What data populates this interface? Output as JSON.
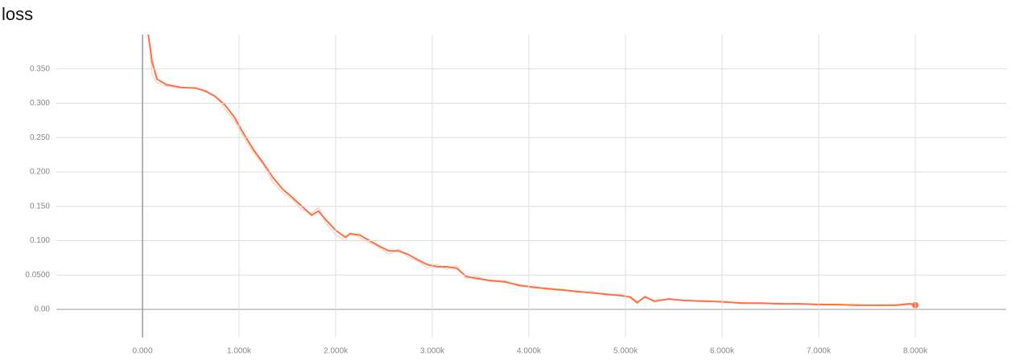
{
  "chart_data": {
    "type": "line",
    "title": "loss",
    "x": [
      40,
      100,
      150,
      250,
      400,
      550,
      650,
      750,
      850,
      950,
      1050,
      1150,
      1250,
      1350,
      1450,
      1550,
      1650,
      1750,
      1820,
      1900,
      2000,
      2100,
      2150,
      2250,
      2350,
      2450,
      2550,
      2650,
      2750,
      2850,
      2950,
      3050,
      3150,
      3250,
      3350,
      3450,
      3600,
      3750,
      3900,
      4050,
      4200,
      4350,
      4500,
      4650,
      4800,
      4950,
      5050,
      5120,
      5200,
      5300,
      5450,
      5600,
      5800,
      6000,
      6200,
      6400,
      6600,
      6800,
      7000,
      7200,
      7400,
      7600,
      7800,
      7950,
      8000
    ],
    "series": [
      {
        "color": "#fbd0c2",
        "values": [
          0.44,
          0.34,
          0.33,
          0.325,
          0.322,
          0.323,
          0.316,
          0.312,
          0.292,
          0.275,
          0.25,
          0.228,
          0.21,
          0.185,
          0.17,
          0.16,
          0.145,
          0.14,
          0.148,
          0.125,
          0.108,
          0.1,
          0.112,
          0.104,
          0.097,
          0.09,
          0.08,
          0.088,
          0.076,
          0.07,
          0.06,
          0.066,
          0.058,
          0.064,
          0.045,
          0.048,
          0.04,
          0.042,
          0.033,
          0.034,
          0.028,
          0.03,
          0.024,
          0.026,
          0.02,
          0.022,
          0.016,
          0.008,
          0.02,
          0.01,
          0.016,
          0.012,
          0.013,
          0.01,
          0.01,
          0.008,
          0.009,
          0.007,
          0.008,
          0.006,
          0.007,
          0.005,
          0.007,
          0.009,
          0.006
        ]
      },
      {
        "color": "#ff7043",
        "values": [
          0.42,
          0.36,
          0.335,
          0.327,
          0.323,
          0.322,
          0.318,
          0.31,
          0.298,
          0.28,
          0.255,
          0.232,
          0.213,
          0.192,
          0.175,
          0.163,
          0.15,
          0.137,
          0.143,
          0.13,
          0.115,
          0.105,
          0.11,
          0.108,
          0.1,
          0.092,
          0.085,
          0.085,
          0.08,
          0.072,
          0.065,
          0.062,
          0.062,
          0.06,
          0.048,
          0.045,
          0.042,
          0.04,
          0.035,
          0.032,
          0.03,
          0.028,
          0.026,
          0.024,
          0.022,
          0.02,
          0.018,
          0.01,
          0.018,
          0.012,
          0.015,
          0.013,
          0.012,
          0.011,
          0.009,
          0.009,
          0.008,
          0.008,
          0.007,
          0.007,
          0.006,
          0.006,
          0.006,
          0.008,
          0.006
        ]
      }
    ],
    "xlim": [
      -892,
      8942
    ],
    "ylim": [
      -0.041,
      0.4
    ],
    "xticks": [
      {
        "value": 0,
        "label": "0.000"
      },
      {
        "value": 1000,
        "label": "1.000k"
      },
      {
        "value": 2000,
        "label": "2.000k"
      },
      {
        "value": 3000,
        "label": "3.000k"
      },
      {
        "value": 4000,
        "label": "4.000k"
      },
      {
        "value": 5000,
        "label": "5.000k"
      },
      {
        "value": 6000,
        "label": "6.000k"
      },
      {
        "value": 7000,
        "label": "7.000k"
      },
      {
        "value": 8000,
        "label": "8.000k"
      }
    ],
    "yticks": [
      {
        "value": 0,
        "label": "0.00"
      },
      {
        "value": 0.05,
        "label": "0.0500"
      },
      {
        "value": 0.1,
        "label": "0.100"
      },
      {
        "value": 0.15,
        "label": "0.150"
      },
      {
        "value": 0.2,
        "label": "0.200"
      },
      {
        "value": 0.25,
        "label": "0.250"
      },
      {
        "value": 0.3,
        "label": "0.300"
      },
      {
        "value": 0.35,
        "label": "0.350"
      }
    ],
    "grid": true
  }
}
